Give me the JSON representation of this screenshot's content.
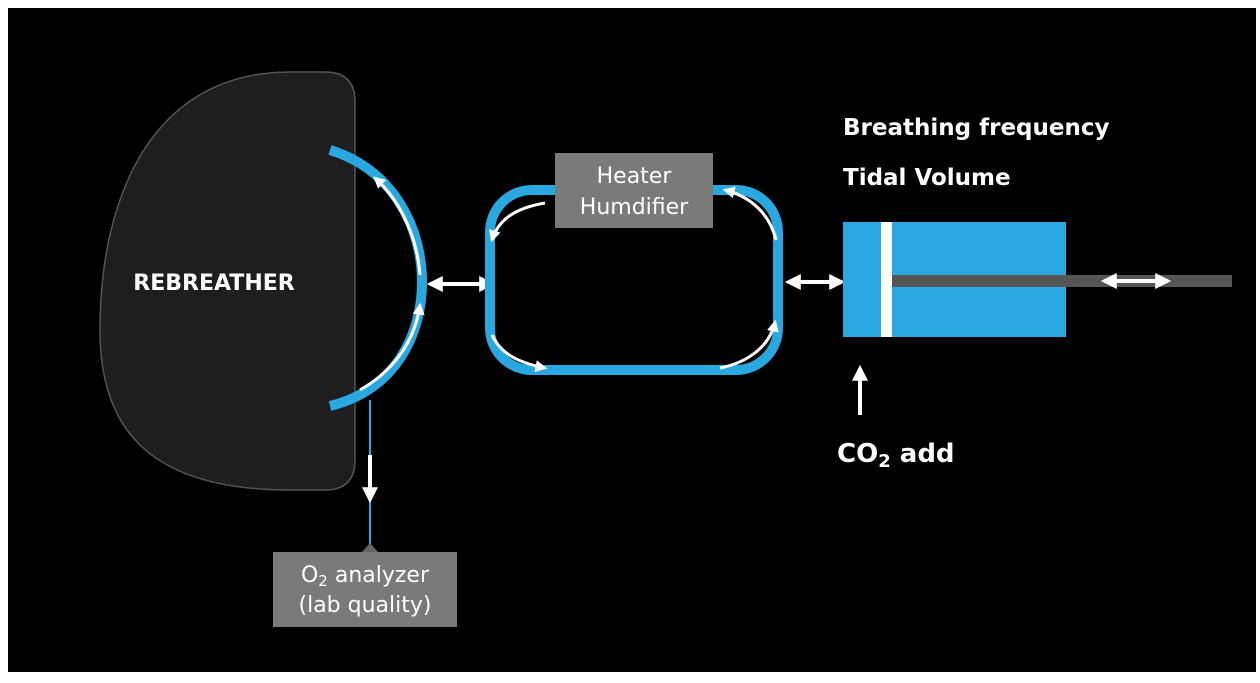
{
  "rebreather": {
    "label": "REBREATHER"
  },
  "heater": {
    "line1": "Heater",
    "line2": "Humdifier"
  },
  "settings": {
    "line1": "Breathing frequency",
    "line2": "Tidal Volume"
  },
  "co2": {
    "main": "CO",
    "sub": "2",
    "rest": " add"
  },
  "analyzer": {
    "main": "O",
    "sub": "2",
    "rest": " analyzer",
    "line2": "(lab quality)"
  }
}
